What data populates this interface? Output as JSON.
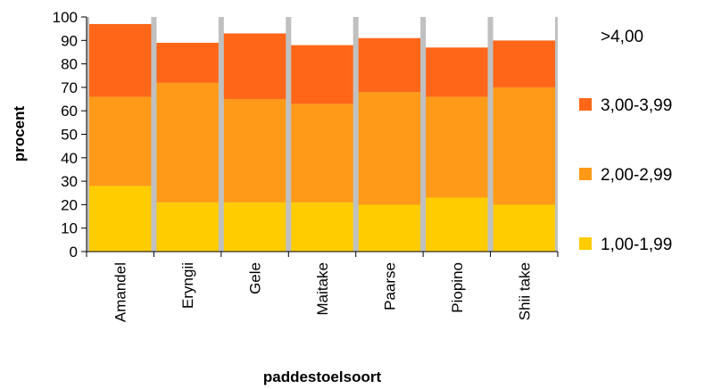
{
  "chart_data": {
    "type": "bar",
    "stacked": true,
    "xlabel": "paddestoelsoort",
    "ylabel": "procent",
    "ylim": [
      0,
      100
    ],
    "yticks": [
      0,
      10,
      20,
      30,
      40,
      50,
      60,
      70,
      80,
      90,
      100
    ],
    "categories": [
      "Amandel",
      "Eryngii",
      "Gele",
      "Maitake",
      "Paarse",
      "Piopino",
      "Shii take"
    ],
    "series": [
      {
        "name": "1,00-1,99",
        "color": "#ffcc00",
        "values": [
          28,
          21,
          21,
          21,
          20,
          23,
          20
        ]
      },
      {
        "name": "2,00-2,99",
        "color": "#ff9a18",
        "values": [
          38,
          51,
          44,
          42,
          48,
          43,
          50
        ]
      },
      {
        "name": "3,00-3,99",
        "color": "#ff6618",
        "values": [
          31,
          17,
          28,
          25,
          23,
          21,
          20
        ]
      },
      {
        "name": ">4,00",
        "color": "#ffffff",
        "values": [
          3,
          11,
          7,
          12,
          9,
          13,
          10
        ]
      }
    ],
    "plot_background": "#c0c0c0",
    "grid": false,
    "legend_position": "right"
  }
}
